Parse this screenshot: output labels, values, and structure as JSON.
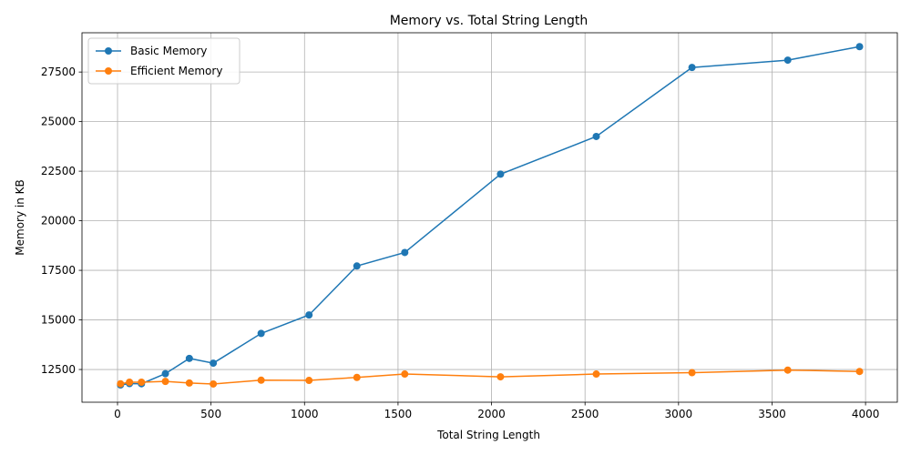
{
  "chart_data": {
    "type": "line",
    "title": "Memory vs. Total String Length",
    "xlabel": "Total String Length",
    "ylabel": "Memory in KB",
    "xlim": [
      -190,
      4170
    ],
    "ylim": [
      10850,
      29480
    ],
    "xticks": [
      0,
      500,
      1000,
      1500,
      2000,
      2500,
      3000,
      3500,
      4000
    ],
    "yticks": [
      12500,
      15000,
      17500,
      20000,
      22500,
      25000,
      27500
    ],
    "grid": true,
    "legend_position": "top-left",
    "x": [
      16,
      64,
      128,
      256,
      384,
      512,
      768,
      1024,
      1280,
      1536,
      2048,
      2560,
      3072,
      3584,
      3968
    ],
    "series": [
      {
        "name": "Basic Memory",
        "color": "#1f77b4",
        "values": [
          11720,
          11790,
          11780,
          12290,
          13060,
          12820,
          14320,
          15250,
          17720,
          18400,
          22350,
          24250,
          27730,
          28100,
          28780
        ]
      },
      {
        "name": "Efficient Memory",
        "color": "#ff7f0e",
        "values": [
          11780,
          11860,
          11860,
          11900,
          11820,
          11770,
          11960,
          11950,
          12100,
          12270,
          12130,
          12270,
          12340,
          12470,
          12400
        ]
      }
    ]
  }
}
